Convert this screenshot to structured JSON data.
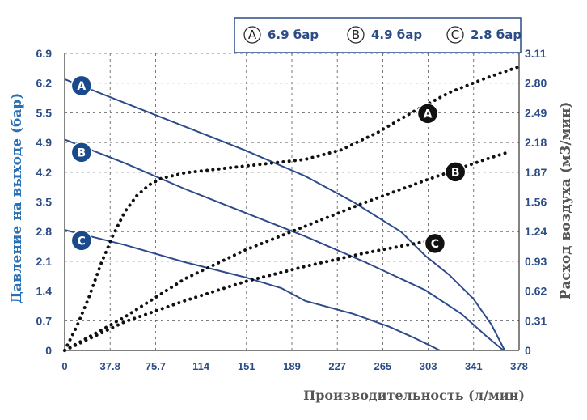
{
  "chart_data": {
    "type": "line",
    "title": "",
    "legend": {
      "placement": "top-right",
      "entries": [
        {
          "letter": "A",
          "label": "6.9 бар"
        },
        {
          "letter": "B",
          "label": "4.9 бар"
        },
        {
          "letter": "C",
          "label": "2.8 бар"
        }
      ]
    },
    "xlabel": "Производительность (л/мин)",
    "ylabel_left": "Давление на выходе (бар)",
    "ylabel_right": "Расход воздуха (м3/мин)",
    "x_ticks": [
      "0",
      "37.8",
      "75.7",
      "114",
      "151",
      "189",
      "227",
      "265",
      "303",
      "341",
      "378"
    ],
    "y_left_ticks": [
      "0",
      "0.7",
      "1.4",
      "2.1",
      "2.8",
      "3.5",
      "4.2",
      "4.9",
      "5.5",
      "6.2",
      "6.9"
    ],
    "y_right_ticks": [
      "0",
      "0.31",
      "0.62",
      "0.93",
      "1.24",
      "1.56",
      "1.87",
      "2.18",
      "2.49",
      "2.80",
      "3.11"
    ],
    "xlim": [
      0,
      378
    ],
    "ylim_left": [
      0,
      6.9
    ],
    "ylim_right": [
      0,
      3.11
    ],
    "grid": "dashed",
    "series": [
      {
        "name": "A",
        "kind": "pressure",
        "axis": "left",
        "style": "solid",
        "x": [
          0,
          50,
          100,
          150,
          200,
          240,
          280,
          300,
          320,
          340,
          355,
          366
        ],
        "y": [
          6.3,
          5.75,
          5.2,
          4.65,
          4.05,
          3.45,
          2.75,
          2.2,
          1.75,
          1.2,
          0.6,
          0
        ],
        "marker_x": 14,
        "marker_y": 6.15
      },
      {
        "name": "B",
        "kind": "pressure",
        "axis": "left",
        "style": "solid",
        "x": [
          0,
          50,
          100,
          150,
          200,
          250,
          300,
          330,
          350,
          365
        ],
        "y": [
          4.9,
          4.35,
          3.75,
          3.2,
          2.65,
          2.05,
          1.4,
          0.85,
          0.35,
          0
        ],
        "marker_x": 14,
        "marker_y": 4.6
      },
      {
        "name": "C",
        "kind": "pressure",
        "axis": "left",
        "style": "solid",
        "x": [
          0,
          50,
          100,
          150,
          180,
          200,
          240,
          270,
          290,
          305,
          312
        ],
        "y": [
          2.8,
          2.45,
          2.05,
          1.7,
          1.45,
          1.15,
          0.85,
          0.55,
          0.3,
          0.1,
          0
        ],
        "marker_x": 14,
        "marker_y": 2.55
      },
      {
        "name": "A",
        "kind": "flow",
        "axis": "right",
        "style": "dotted",
        "x": [
          0,
          10,
          20,
          30,
          40,
          50,
          60,
          70,
          80,
          100,
          150,
          200,
          230,
          260,
          290,
          320,
          350,
          378
        ],
        "y": [
          0,
          0.25,
          0.55,
          0.9,
          1.2,
          1.45,
          1.62,
          1.73,
          1.8,
          1.86,
          1.93,
          2.0,
          2.1,
          2.28,
          2.5,
          2.7,
          2.85,
          2.97
        ],
        "marker_x": 302,
        "marker_y": 2.48
      },
      {
        "name": "B",
        "kind": "flow",
        "axis": "right",
        "style": "dotted",
        "x": [
          0,
          50,
          100,
          150,
          200,
          250,
          300,
          350,
          370
        ],
        "y": [
          0,
          0.35,
          0.75,
          1.05,
          1.3,
          1.55,
          1.78,
          2.0,
          2.08
        ],
        "marker_x": 325,
        "marker_y": 1.87
      },
      {
        "name": "C",
        "kind": "flow",
        "axis": "right",
        "style": "dotted",
        "x": [
          0,
          50,
          100,
          150,
          200,
          250,
          300
        ],
        "y": [
          0,
          0.3,
          0.52,
          0.72,
          0.88,
          1.02,
          1.14
        ],
        "marker_x": 308,
        "marker_y": 1.12
      }
    ],
    "colors": {
      "line": "#2d4a8a",
      "marker_fill": "#1a4a8c",
      "dots": "#111111",
      "grid": "#555555",
      "legend_border": "#2b4c86"
    }
  }
}
